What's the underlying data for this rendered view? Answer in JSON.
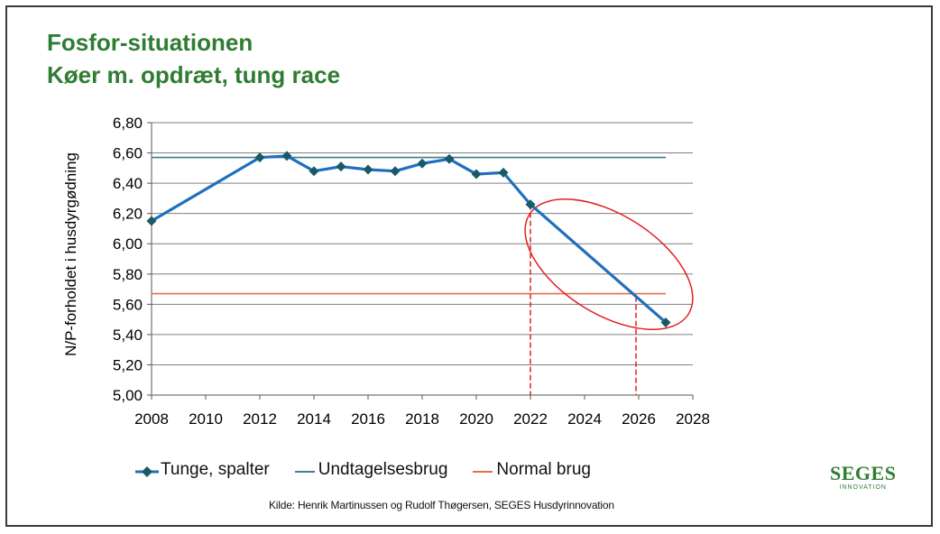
{
  "title_line1": "Fosfor-situationen",
  "title_line2": "Køer m. opdræt, tung race",
  "chart_data": {
    "type": "line",
    "ylabel": "N/P-forholdet i husdyrgødning",
    "xlabel": "",
    "xlim": [
      2008,
      2028
    ],
    "ylim": [
      5.0,
      6.8
    ],
    "x_ticks": [
      "2008",
      "2010",
      "2012",
      "2014",
      "2016",
      "2018",
      "2020",
      "2022",
      "2024",
      "2026",
      "2028"
    ],
    "y_ticks": [
      "5,00",
      "5,20",
      "5,40",
      "5,60",
      "5,80",
      "6,00",
      "6,20",
      "6,40",
      "6,60",
      "6,80"
    ],
    "grid": true,
    "series": [
      {
        "name": "Tunge, spalter",
        "color": "#1f6fbf",
        "marker": "diamond",
        "x": [
          2008,
          2012,
          2013,
          2014,
          2015,
          2016,
          2017,
          2018,
          2019,
          2020,
          2021,
          2022,
          2027
        ],
        "y": [
          6.15,
          6.57,
          6.58,
          6.48,
          6.51,
          6.49,
          6.48,
          6.53,
          6.56,
          6.46,
          6.47,
          6.26,
          5.48
        ]
      },
      {
        "name": "Undtagelsesbrug",
        "color": "#3f7f8f",
        "type": "hline",
        "y": 6.57,
        "x_range": [
          2008,
          2027
        ]
      },
      {
        "name": "Normal brug",
        "color": "#e07050",
        "type": "hline",
        "y": 5.67,
        "x_range": [
          2008,
          2027
        ]
      }
    ],
    "annotations": [
      {
        "type": "vline_dashed",
        "x": 2022,
        "color": "#e02020"
      },
      {
        "type": "vline_dashed",
        "x": 2025.9,
        "color": "#e02020"
      },
      {
        "type": "ellipse",
        "color": "#e02020",
        "description": "highlight of projected decline 2022-2027"
      }
    ]
  },
  "legend": {
    "items": [
      "Tunge, spalter",
      "Undtagelsesbrug",
      "Normal brug"
    ]
  },
  "source": "Kilde: Henrik Martinussen og Rudolf Thøgersen, SEGES Husdyrinnovation",
  "logo": {
    "main": "SEGES",
    "sub": "INNOVATION"
  }
}
